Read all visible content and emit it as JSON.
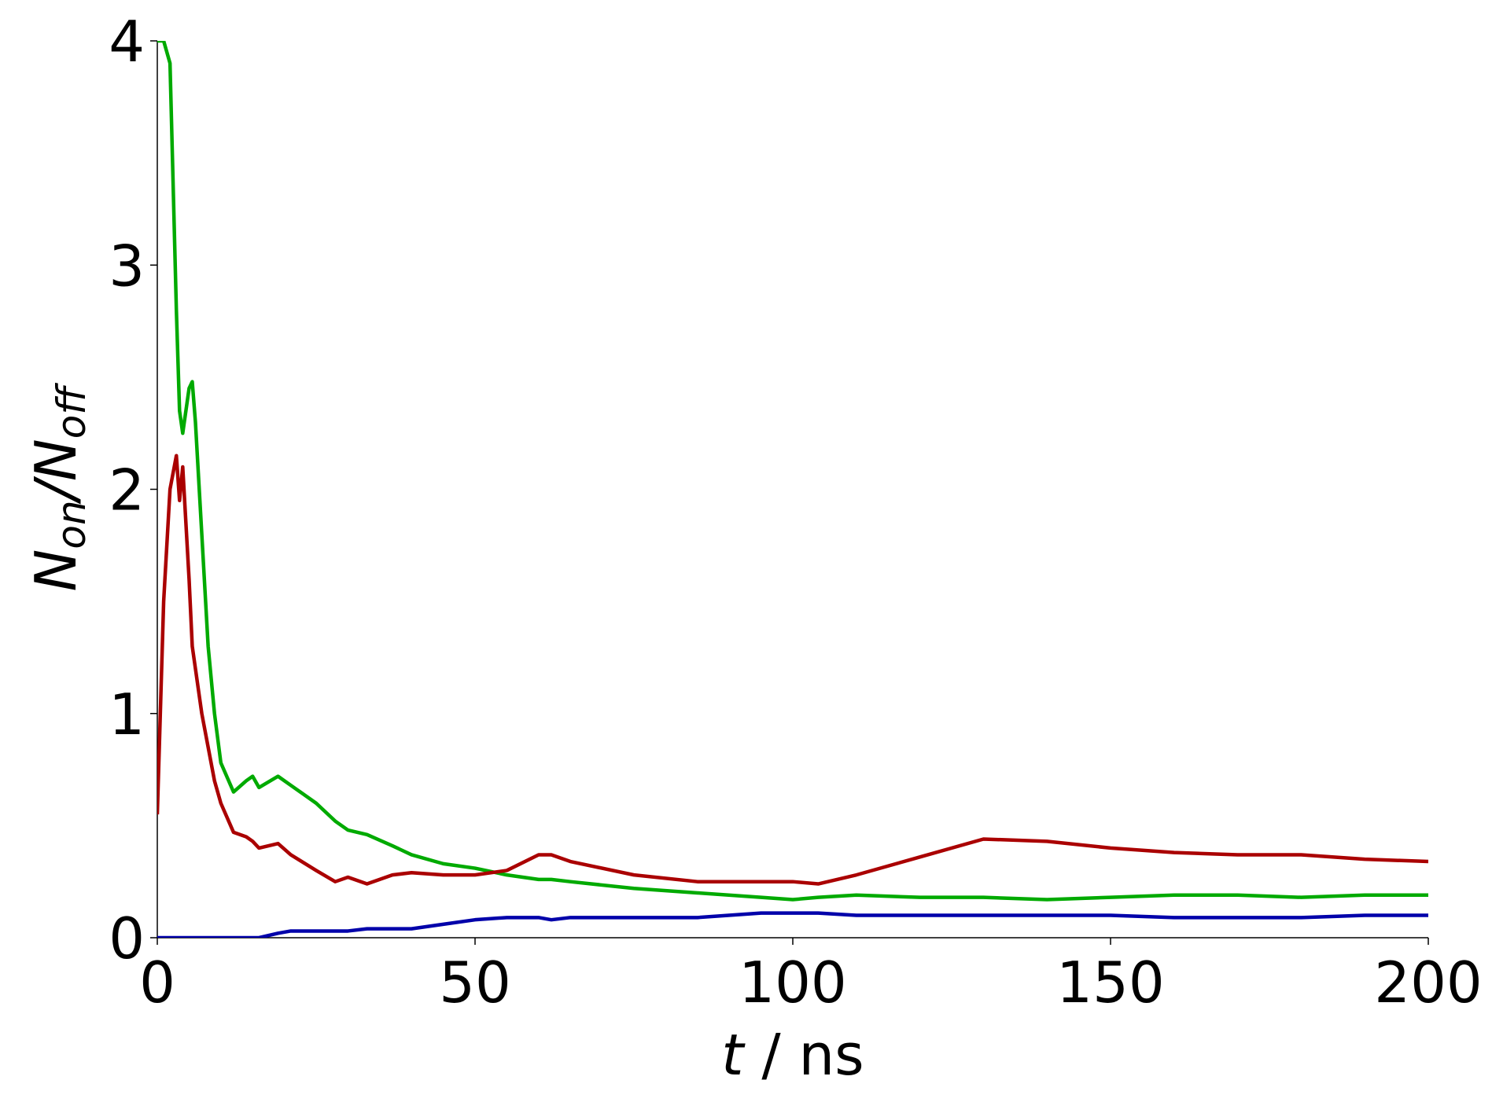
{
  "chart_data": {
    "type": "line",
    "xlabel": [
      "t",
      " / ns"
    ],
    "ylabel": [
      "N",
      "on",
      "/",
      "N",
      "off"
    ],
    "x": [
      0,
      1,
      2,
      3,
      3.5,
      4,
      5,
      5.5,
      6,
      7,
      8,
      9,
      10,
      12,
      14,
      15,
      16,
      19,
      21,
      25,
      28,
      30,
      33,
      37,
      40,
      45,
      50,
      55,
      60,
      62,
      65,
      75,
      85,
      95,
      100,
      104,
      110,
      120,
      130,
      140,
      150,
      160,
      170,
      180,
      190,
      200
    ],
    "series": [
      {
        "color": "#00aa00",
        "values": [
          4.0,
          4.0,
          3.9,
          2.8,
          2.35,
          2.25,
          2.45,
          2.48,
          2.3,
          1.8,
          1.3,
          1.0,
          0.78,
          0.65,
          0.7,
          0.72,
          0.67,
          0.72,
          0.68,
          0.6,
          0.52,
          0.48,
          0.46,
          0.41,
          0.37,
          0.33,
          0.31,
          0.28,
          0.26,
          0.26,
          0.25,
          0.22,
          0.2,
          0.18,
          0.17,
          0.18,
          0.19,
          0.18,
          0.18,
          0.17,
          0.18,
          0.19,
          0.19,
          0.18,
          0.19,
          0.19
        ]
      },
      {
        "color": "#aa0000",
        "values": [
          0.55,
          1.5,
          2.0,
          2.15,
          1.95,
          2.1,
          1.6,
          1.3,
          1.2,
          1.0,
          0.85,
          0.7,
          0.6,
          0.47,
          0.45,
          0.43,
          0.4,
          0.42,
          0.37,
          0.3,
          0.25,
          0.27,
          0.24,
          0.28,
          0.29,
          0.28,
          0.28,
          0.3,
          0.37,
          0.37,
          0.34,
          0.28,
          0.25,
          0.25,
          0.25,
          0.24,
          0.28,
          0.36,
          0.44,
          0.43,
          0.4,
          0.38,
          0.37,
          0.37,
          0.35,
          0.34
        ]
      },
      {
        "color": "#0000aa",
        "values": [
          0,
          0,
          0,
          0,
          0,
          0,
          0,
          0,
          0,
          0,
          0,
          0,
          0,
          0,
          0,
          0,
          0,
          0.02,
          0.03,
          0.03,
          0.03,
          0.03,
          0.04,
          0.04,
          0.04,
          0.06,
          0.08,
          0.09,
          0.09,
          0.08,
          0.09,
          0.09,
          0.09,
          0.11,
          0.11,
          0.11,
          0.1,
          0.1,
          0.1,
          0.1,
          0.1,
          0.09,
          0.09,
          0.09,
          0.1,
          0.1
        ]
      }
    ],
    "xlim": [
      0,
      200
    ],
    "xticks": [
      0,
      50,
      100,
      150,
      200
    ],
    "ylim": [
      0,
      4
    ],
    "yticks": [
      0,
      1,
      2,
      3,
      4
    ]
  }
}
